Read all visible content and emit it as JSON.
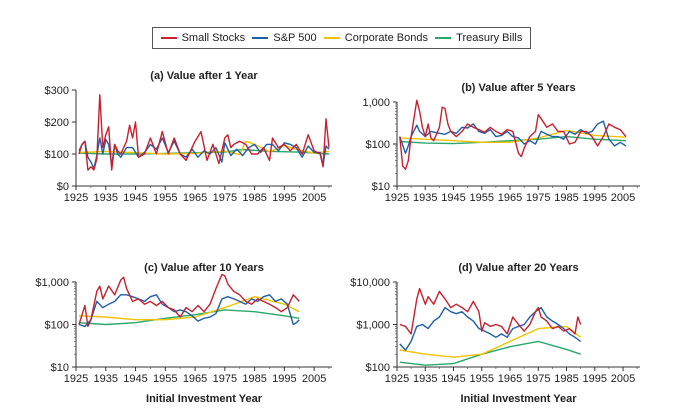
{
  "legend": [
    {
      "name": "Small Stocks",
      "color": "#c8202e"
    },
    {
      "name": "S&P 500",
      "color": "#1f5fa8"
    },
    {
      "name": "Corporate Bonds",
      "color": "#f2c200"
    },
    {
      "name": "Treasury Bills",
      "color": "#2aa86a"
    }
  ],
  "chart_data": [
    {
      "type": "line",
      "title": "(a) Value after 1 Year",
      "xlabel": "",
      "ylabel": "",
      "yscale": "linear",
      "ylim": [
        0,
        300
      ],
      "yticks": [
        0,
        100,
        200,
        300
      ],
      "yticklabels": [
        "$0",
        "$100",
        "$200",
        "$300"
      ],
      "xlim": [
        1925,
        2011
      ],
      "xticks": [
        1925,
        1935,
        1945,
        1955,
        1965,
        1975,
        1985,
        1995,
        2005
      ],
      "series": [
        {
          "name": "Small Stocks",
          "x": [
            1926,
            1927,
            1928,
            1929,
            1930,
            1931,
            1932,
            1933,
            1934,
            1935,
            1936,
            1937,
            1938,
            1939,
            1940,
            1942,
            1943,
            1944,
            1945,
            1946,
            1948,
            1950,
            1952,
            1954,
            1956,
            1958,
            1960,
            1962,
            1964,
            1965,
            1967,
            1969,
            1971,
            1973,
            1975,
            1976,
            1977,
            1978,
            1980,
            1982,
            1984,
            1986,
            1988,
            1990,
            1991,
            1993,
            1995,
            1997,
            1999,
            2001,
            2003,
            2005,
            2007,
            2008,
            2009,
            2010
          ],
          "y": [
            100,
            130,
            140,
            50,
            60,
            50,
            85,
            285,
            120,
            160,
            185,
            50,
            130,
            110,
            100,
            140,
            190,
            150,
            200,
            90,
            100,
            150,
            100,
            170,
            100,
            150,
            100,
            80,
            120,
            140,
            170,
            80,
            130,
            70,
            150,
            160,
            120,
            130,
            140,
            130,
            100,
            100,
            120,
            80,
            150,
            120,
            130,
            110,
            130,
            100,
            160,
            110,
            100,
            60,
            210,
            120
          ]
        },
        {
          "name": "S&P 500",
          "x": [
            1926,
            1927,
            1928,
            1929,
            1930,
            1931,
            1932,
            1933,
            1934,
            1935,
            1936,
            1937,
            1938,
            1939,
            1940,
            1942,
            1944,
            1946,
            1948,
            1950,
            1952,
            1954,
            1956,
            1958,
            1960,
            1962,
            1964,
            1966,
            1968,
            1970,
            1972,
            1974,
            1975,
            1977,
            1979,
            1981,
            1983,
            1985,
            1987,
            1989,
            1991,
            1993,
            1995,
            1997,
            1999,
            2001,
            2003,
            2005,
            2007,
            2008,
            2009,
            2010
          ],
          "y": [
            110,
            130,
            140,
            90,
            75,
            55,
            95,
            150,
            100,
            145,
            130,
            65,
            130,
            100,
            90,
            120,
            120,
            90,
            105,
            130,
            115,
            150,
            105,
            140,
            100,
            90,
            115,
            90,
            110,
            100,
            120,
            75,
            135,
            95,
            115,
            95,
            120,
            130,
            105,
            130,
            130,
            110,
            135,
            130,
            120,
            90,
            125,
            105,
            105,
            65,
            125,
            115
          ]
        },
        {
          "name": "Corporate Bonds",
          "x": [
            1926,
            1935,
            1945,
            1955,
            1965,
            1975,
            1980,
            1982,
            1985,
            1990,
            1995,
            2000,
            2005,
            2010
          ],
          "y": [
            105,
            108,
            104,
            100,
            102,
            109,
            98,
            140,
            130,
            107,
            126,
            112,
            103,
            108
          ]
        },
        {
          "name": "Treasury Bills",
          "x": [
            1926,
            1935,
            1945,
            1955,
            1965,
            1975,
            1981,
            1990,
            2000,
            2005,
            2010
          ],
          "y": [
            103,
            100,
            100,
            102,
            104,
            106,
            114,
            108,
            106,
            103,
            100
          ]
        }
      ]
    },
    {
      "type": "line",
      "title": "(b) Value after 5 Years",
      "xlabel": "",
      "ylabel": "",
      "yscale": "log",
      "ylim": [
        10,
        1000
      ],
      "yticks": [
        10,
        100,
        1000
      ],
      "yticklabels": [
        "$10",
        "$100",
        "1,000"
      ],
      "xlim": [
        1925,
        2011
      ],
      "xticks": [
        1925,
        1935,
        1945,
        1955,
        1965,
        1975,
        1985,
        1995,
        2005
      ],
      "series": [
        {
          "name": "Small Stocks",
          "x": [
            1926,
            1927,
            1928,
            1929,
            1930,
            1932,
            1933,
            1934,
            1935,
            1936,
            1937,
            1938,
            1940,
            1941,
            1942,
            1943,
            1944,
            1946,
            1948,
            1950,
            1952,
            1954,
            1956,
            1958,
            1960,
            1962,
            1964,
            1966,
            1968,
            1969,
            1970,
            1972,
            1974,
            1975,
            1976,
            1978,
            1980,
            1982,
            1984,
            1986,
            1988,
            1990,
            1992,
            1994,
            1996,
            1998,
            2000,
            2002,
            2004,
            2006
          ],
          "y": [
            150,
            30,
            25,
            40,
            150,
            1100,
            600,
            250,
            150,
            300,
            140,
            120,
            250,
            750,
            700,
            300,
            200,
            150,
            200,
            300,
            250,
            220,
            190,
            250,
            200,
            170,
            220,
            200,
            60,
            50,
            80,
            150,
            200,
            500,
            400,
            250,
            300,
            200,
            200,
            100,
            110,
            200,
            200,
            150,
            90,
            150,
            300,
            250,
            220,
            150
          ]
        },
        {
          "name": "S&P 500",
          "x": [
            1926,
            1928,
            1929,
            1930,
            1932,
            1933,
            1935,
            1937,
            1940,
            1942,
            1944,
            1946,
            1948,
            1950,
            1952,
            1954,
            1956,
            1958,
            1960,
            1962,
            1964,
            1966,
            1968,
            1970,
            1972,
            1974,
            1976,
            1978,
            1980,
            1982,
            1984,
            1986,
            1988,
            1990,
            1992,
            1994,
            1996,
            1998,
            2000,
            2002,
            2004,
            2006
          ],
          "y": [
            150,
            60,
            90,
            150,
            280,
            200,
            150,
            200,
            180,
            170,
            200,
            180,
            250,
            240,
            300,
            200,
            180,
            220,
            150,
            160,
            200,
            150,
            140,
            100,
            120,
            100,
            200,
            170,
            150,
            150,
            130,
            200,
            170,
            220,
            180,
            200,
            300,
            350,
            130,
            90,
            110,
            90
          ]
        },
        {
          "name": "Corporate Bonds",
          "x": [
            1926,
            1935,
            1945,
            1955,
            1965,
            1975,
            1985,
            1995,
            2006
          ],
          "y": [
            140,
            130,
            120,
            110,
            110,
            140,
            210,
            160,
            145
          ]
        },
        {
          "name": "Treasury Bills",
          "x": [
            1926,
            1935,
            1945,
            1955,
            1965,
            1975,
            1985,
            1995,
            2006
          ],
          "y": [
            115,
            105,
            102,
            110,
            120,
            130,
            150,
            130,
            120
          ]
        }
      ]
    },
    {
      "type": "line",
      "title": "(c) Value after 10 Years",
      "xlabel": "Initial Investment Year",
      "ylabel": "",
      "yscale": "log",
      "ylim": [
        10,
        1000
      ],
      "yticks": [
        10,
        100,
        1000
      ],
      "yticklabels": [
        "$10",
        "$100",
        "$1,000"
      ],
      "xlim": [
        1925,
        2011
      ],
      "xticks": [
        1925,
        1935,
        1945,
        1955,
        1965,
        1975,
        1985,
        1995,
        2005
      ],
      "series": [
        {
          "name": "Small Stocks",
          "x": [
            1926,
            1928,
            1929,
            1930,
            1932,
            1933,
            1934,
            1936,
            1938,
            1940,
            1941,
            1942,
            1944,
            1946,
            1948,
            1950,
            1952,
            1954,
            1956,
            1958,
            1960,
            1962,
            1964,
            1966,
            1968,
            1970,
            1972,
            1974,
            1975,
            1976,
            1978,
            1980,
            1982,
            1984,
            1986,
            1988,
            1990,
            1992,
            1994,
            1996,
            1998,
            2000
          ],
          "y": [
            100,
            280,
            90,
            130,
            600,
            800,
            400,
            800,
            500,
            1100,
            1300,
            700,
            350,
            400,
            300,
            350,
            280,
            350,
            250,
            220,
            150,
            250,
            200,
            280,
            200,
            300,
            700,
            1500,
            1400,
            900,
            600,
            500,
            350,
            300,
            400,
            350,
            300,
            250,
            200,
            250,
            500,
            350
          ]
        },
        {
          "name": "S&P 500",
          "x": [
            1926,
            1928,
            1930,
            1932,
            1934,
            1936,
            1938,
            1940,
            1942,
            1944,
            1946,
            1948,
            1950,
            1952,
            1954,
            1956,
            1958,
            1960,
            1962,
            1964,
            1966,
            1968,
            1970,
            1972,
            1974,
            1976,
            1978,
            1980,
            1982,
            1984,
            1986,
            1988,
            1990,
            1992,
            1994,
            1996,
            1998,
            1999,
            2000
          ],
          "y": [
            100,
            90,
            130,
            350,
            250,
            300,
            350,
            500,
            500,
            450,
            400,
            350,
            450,
            500,
            300,
            250,
            200,
            220,
            200,
            160,
            120,
            140,
            150,
            180,
            400,
            450,
            400,
            350,
            300,
            400,
            350,
            450,
            500,
            350,
            400,
            300,
            100,
            110,
            130
          ]
        },
        {
          "name": "Corporate Bonds",
          "x": [
            1926,
            1935,
            1945,
            1955,
            1965,
            1975,
            1985,
            1995,
            2000
          ],
          "y": [
            160,
            150,
            130,
            130,
            150,
            250,
            450,
            300,
            200
          ]
        },
        {
          "name": "Treasury Bills",
          "x": [
            1926,
            1935,
            1945,
            1955,
            1965,
            1975,
            1985,
            1995,
            2000
          ],
          "y": [
            110,
            100,
            110,
            140,
            170,
            220,
            200,
            160,
            140
          ]
        }
      ]
    },
    {
      "type": "line",
      "title": "(d) Value after 20 Years",
      "xlabel": "Initial Investment Year",
      "ylabel": "",
      "yscale": "log",
      "ylim": [
        100,
        10000
      ],
      "yticks": [
        100,
        1000,
        10000
      ],
      "yticklabels": [
        "$100",
        "$1,000",
        "$10,000"
      ],
      "xlim": [
        1925,
        2011
      ],
      "xticks": [
        1925,
        1935,
        1945,
        1955,
        1965,
        1975,
        1985,
        1995,
        2005
      ],
      "series": [
        {
          "name": "Small Stocks",
          "x": [
            1926,
            1928,
            1930,
            1932,
            1933,
            1935,
            1936,
            1938,
            1940,
            1942,
            1944,
            1946,
            1948,
            1950,
            1952,
            1954,
            1955,
            1956,
            1958,
            1960,
            1962,
            1964,
            1966,
            1968,
            1970,
            1972,
            1974,
            1975,
            1976,
            1978,
            1980,
            1982,
            1984,
            1986,
            1988,
            1989,
            1990
          ],
          "y": [
            1000,
            900,
            600,
            4000,
            7000,
            3000,
            4500,
            3000,
            6000,
            4000,
            2500,
            3000,
            2500,
            2000,
            3500,
            2000,
            700,
            1100,
            900,
            1000,
            900,
            600,
            1500,
            1000,
            700,
            1000,
            2000,
            2500,
            1500,
            1200,
            800,
            900,
            700,
            800,
            600,
            1500,
            1000
          ]
        },
        {
          "name": "S&P 500",
          "x": [
            1926,
            1928,
            1930,
            1932,
            1934,
            1936,
            1938,
            1940,
            1942,
            1944,
            1946,
            1948,
            1950,
            1952,
            1954,
            1956,
            1958,
            1960,
            1962,
            1964,
            1966,
            1968,
            1970,
            1972,
            1974,
            1976,
            1978,
            1980,
            1982,
            1984,
            1986,
            1988,
            1990
          ],
          "y": [
            350,
            250,
            400,
            900,
            1000,
            800,
            1200,
            1500,
            2500,
            2000,
            1800,
            2000,
            1500,
            1200,
            800,
            700,
            600,
            500,
            600,
            500,
            800,
            900,
            1000,
            1500,
            2000,
            2500,
            1500,
            1200,
            1000,
            800,
            600,
            500,
            400
          ]
        },
        {
          "name": "Corporate Bonds",
          "x": [
            1926,
            1935,
            1945,
            1955,
            1965,
            1975,
            1985,
            1990
          ],
          "y": [
            250,
            200,
            170,
            200,
            400,
            800,
            900,
            500
          ]
        },
        {
          "name": "Treasury Bills",
          "x": [
            1926,
            1935,
            1945,
            1955,
            1965,
            1975,
            1985,
            1990
          ],
          "y": [
            130,
            110,
            120,
            200,
            300,
            400,
            260,
            200
          ]
        }
      ]
    }
  ]
}
